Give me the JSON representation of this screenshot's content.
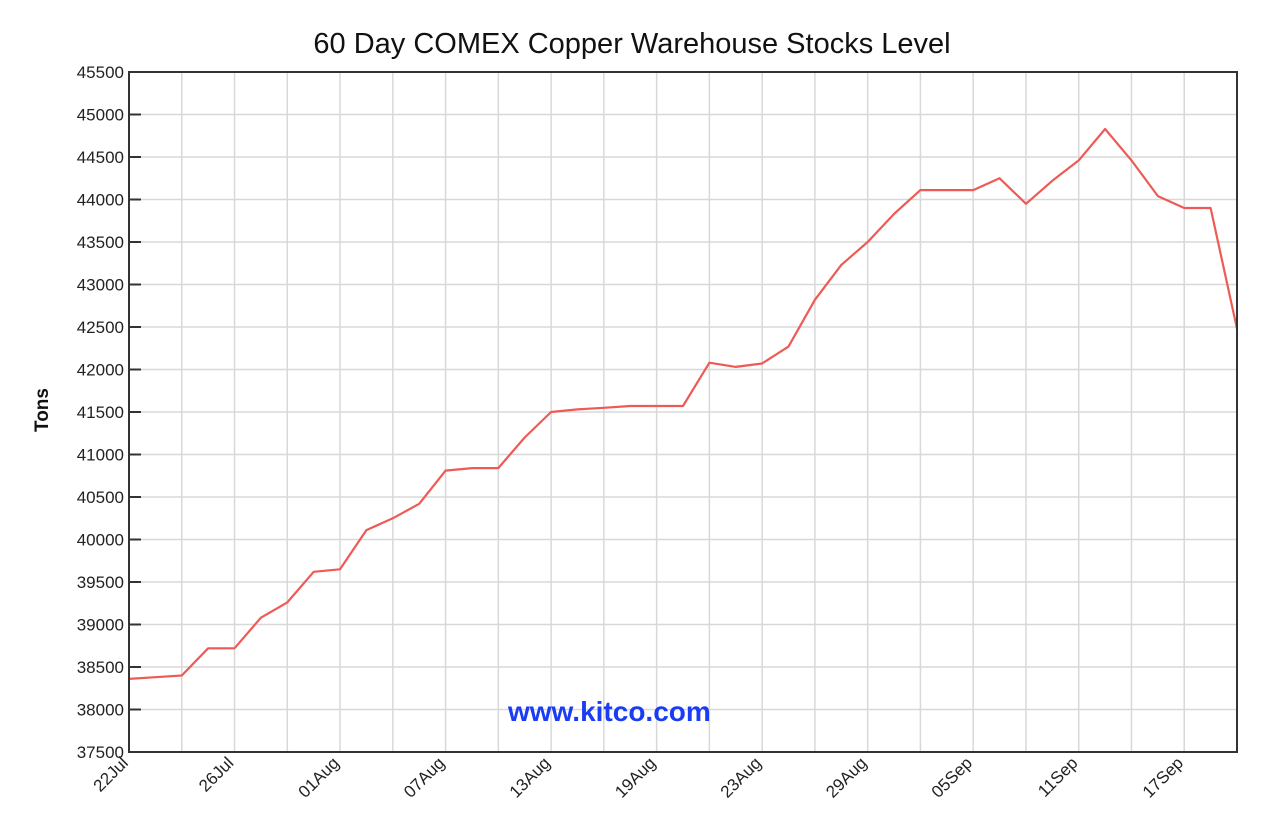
{
  "chart_data": {
    "type": "line",
    "title": "60 Day COMEX Copper Warehouse Stocks Level",
    "xlabel": "",
    "ylabel": "Tons",
    "ylim": [
      37500,
      45500
    ],
    "yticks": [
      37500,
      38000,
      38500,
      39000,
      39500,
      40000,
      40500,
      41000,
      41500,
      42000,
      42500,
      43000,
      43500,
      44000,
      44500,
      45000,
      45500
    ],
    "xtick_labels": [
      "22Jul",
      "26Jul",
      "01Aug",
      "07Aug",
      "13Aug",
      "19Aug",
      "23Aug",
      "29Aug",
      "05Sep",
      "11Sep",
      "17Sep"
    ],
    "xtick_every_n_points": 4,
    "grid": true,
    "legend": null,
    "annotation": "www.kitco.com",
    "series": [
      {
        "name": "COMEX Copper Warehouse Stocks",
        "color": "#ee5a55",
        "values": [
          38360,
          38380,
          38400,
          38720,
          38720,
          39080,
          39260,
          39620,
          39650,
          40110,
          40250,
          40420,
          40810,
          40840,
          40840,
          41200,
          41500,
          41530,
          41550,
          41570,
          41570,
          41570,
          42080,
          42030,
          42070,
          42270,
          42820,
          43230,
          43500,
          43830,
          44110,
          44110,
          44110,
          44250,
          43950,
          44220,
          44460,
          44830,
          44460,
          44040,
          43900,
          43900,
          42480
        ]
      }
    ]
  },
  "chart": {
    "title": "60 Day COMEX Copper Warehouse Stocks Level",
    "ylabel": "Tons",
    "watermark": "www.kitco.com"
  },
  "colors": {
    "line": "#ee5a55",
    "grid": "#d8d8d8",
    "axis": "#333333",
    "watermark": "#1a3cf2"
  }
}
